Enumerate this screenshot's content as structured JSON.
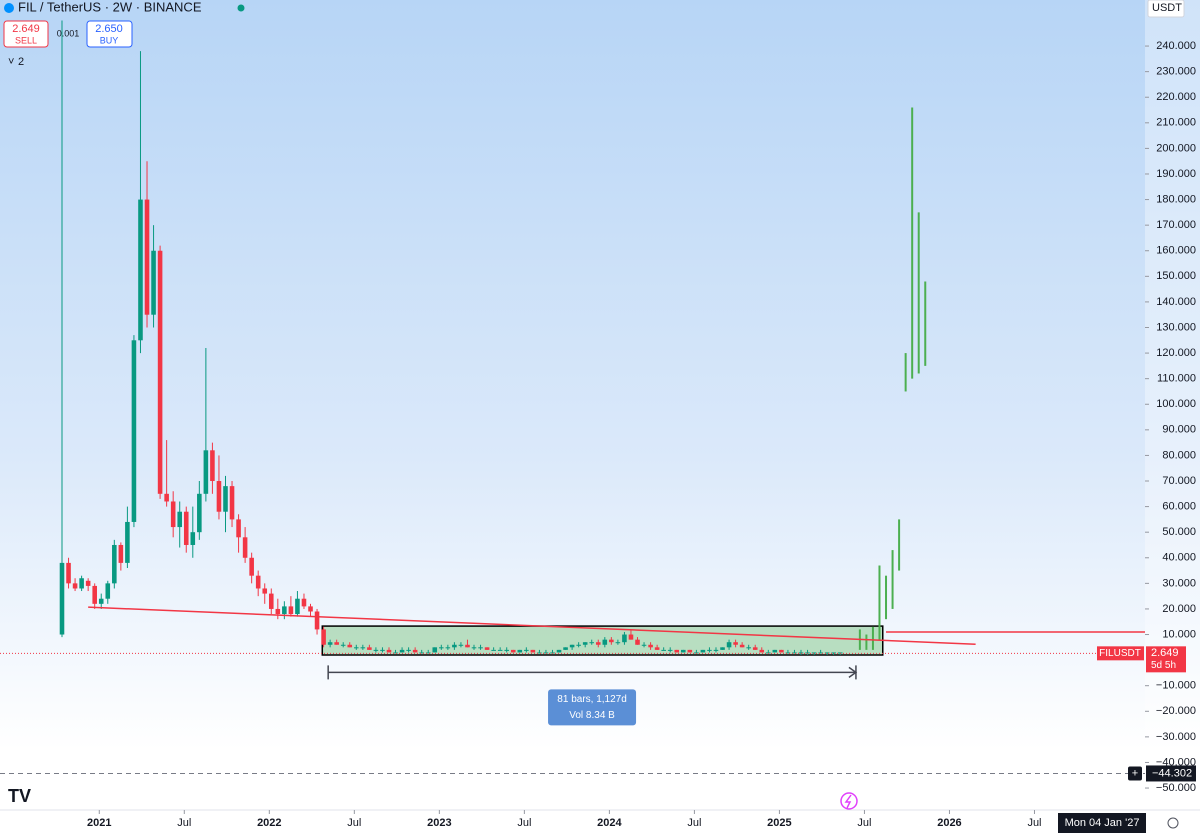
{
  "chart_data": {
    "type": "candlestick",
    "title": "FIL / TetherUS · 2W · BINANCE",
    "sell_price": "2.649",
    "sell_label": "SELL",
    "spread": "0.001",
    "buy_price": "2.650",
    "buy_label": "BUY",
    "indicator_count": "2",
    "currency": "USDT",
    "up_color": "#089981",
    "down_color": "#f23645",
    "xlim": [
      -9.48,
      165.6
    ],
    "ylim": [
      -57.8,
      258.0
    ],
    "xticks": [
      {
        "value": 5.7,
        "label": "2021"
      },
      {
        "value": 18.7,
        "label": "Jul"
      },
      {
        "value": 31.7,
        "label": "2022"
      },
      {
        "value": 44.7,
        "label": "Jul"
      },
      {
        "value": 57.7,
        "label": "2023"
      },
      {
        "value": 70.7,
        "label": "Jul"
      },
      {
        "value": 83.7,
        "label": "2024"
      },
      {
        "value": 96.7,
        "label": "Jul"
      },
      {
        "value": 109.7,
        "label": "2025"
      },
      {
        "value": 122.7,
        "label": "Jul"
      },
      {
        "value": 135.7,
        "label": "2026"
      },
      {
        "value": 148.7,
        "label": "Jul"
      }
    ],
    "yticks": [
      {
        "value": 240,
        "label": "240.000"
      },
      {
        "value": 230,
        "label": "230.000"
      },
      {
        "value": 220,
        "label": "220.000"
      },
      {
        "value": 210,
        "label": "210.000"
      },
      {
        "value": 200,
        "label": "200.000"
      },
      {
        "value": 190,
        "label": "190.000"
      },
      {
        "value": 180,
        "label": "180.000"
      },
      {
        "value": 170,
        "label": "170.000"
      },
      {
        "value": 160,
        "label": "160.000"
      },
      {
        "value": 150,
        "label": "150.000"
      },
      {
        "value": 140,
        "label": "140.000"
      },
      {
        "value": 130,
        "label": "130.000"
      },
      {
        "value": 120,
        "label": "120.000"
      },
      {
        "value": 110,
        "label": "110.000"
      },
      {
        "value": 100,
        "label": "100.000"
      },
      {
        "value": 90,
        "label": "90.000"
      },
      {
        "value": 80,
        "label": "80.000"
      },
      {
        "value": 70,
        "label": "70.000"
      },
      {
        "value": 60,
        "label": "60.000"
      },
      {
        "value": 50,
        "label": "50.000"
      },
      {
        "value": 40,
        "label": "40.000"
      },
      {
        "value": 30,
        "label": "30.000"
      },
      {
        "value": 20,
        "label": "20.000"
      },
      {
        "value": 10,
        "label": "10.000"
      },
      {
        "value": -10,
        "label": "−10.000"
      },
      {
        "value": -20,
        "label": "−20.000"
      },
      {
        "value": -30,
        "label": "−30.000"
      },
      {
        "value": -40,
        "label": "−40.000"
      },
      {
        "value": -50,
        "label": "−50.000"
      }
    ],
    "x": [
      0,
      1,
      2,
      3,
      4,
      5,
      6,
      7,
      8,
      9,
      10,
      11,
      12,
      13,
      14,
      15,
      16,
      17,
      18,
      19,
      20,
      21,
      22,
      23,
      24,
      25,
      26,
      27,
      28,
      29,
      30,
      31,
      32,
      33,
      34,
      35,
      36,
      37,
      38,
      39,
      40,
      41,
      42,
      43,
      44,
      45,
      46,
      47,
      48,
      49,
      50,
      51,
      52,
      53,
      54,
      55,
      56,
      57,
      58,
      59,
      60,
      61,
      62,
      63,
      64,
      65,
      66,
      67,
      68,
      69,
      70,
      71,
      72,
      73,
      74,
      75,
      76,
      77,
      78,
      79,
      80,
      81,
      82,
      83,
      84,
      85,
      86,
      87,
      88,
      89,
      90,
      91,
      92,
      93,
      94,
      95,
      96,
      97,
      98,
      99,
      100,
      101,
      102,
      103,
      104,
      105,
      106,
      107,
      108,
      109,
      110,
      111,
      112,
      113,
      114,
      115,
      116,
      117,
      118,
      119
    ],
    "ohlc": [
      [
        10,
        250,
        9,
        38
      ],
      [
        38,
        40,
        28,
        30
      ],
      [
        30,
        32,
        27,
        28
      ],
      [
        28,
        33,
        27,
        32
      ],
      [
        31,
        32,
        27,
        29
      ],
      [
        29,
        30,
        20,
        22
      ],
      [
        22,
        26,
        20,
        24
      ],
      [
        24,
        31,
        22,
        30
      ],
      [
        30,
        47,
        28,
        45
      ],
      [
        45,
        46,
        35,
        38
      ],
      [
        38,
        60,
        36,
        54
      ],
      [
        54,
        127,
        52,
        125
      ],
      [
        125,
        238,
        120,
        180
      ],
      [
        180,
        195,
        130,
        135
      ],
      [
        135,
        170,
        130,
        160
      ],
      [
        160,
        162,
        63,
        65
      ],
      [
        65,
        86,
        60,
        62
      ],
      [
        62,
        66,
        48,
        52
      ],
      [
        52,
        62,
        44,
        58
      ],
      [
        58,
        60,
        42,
        45
      ],
      [
        45,
        60,
        40,
        50
      ],
      [
        50,
        70,
        47,
        65
      ],
      [
        65,
        122,
        62,
        82
      ],
      [
        82,
        85,
        65,
        70
      ],
      [
        70,
        80,
        55,
        58
      ],
      [
        58,
        72,
        50,
        68
      ],
      [
        68,
        70,
        52,
        55
      ],
      [
        55,
        57,
        42,
        48
      ],
      [
        48,
        52,
        38,
        40
      ],
      [
        40,
        42,
        30,
        33
      ],
      [
        33,
        35,
        25,
        28
      ],
      [
        28,
        30,
        22,
        26
      ],
      [
        26,
        28,
        18,
        20
      ],
      [
        20,
        24,
        16,
        18
      ],
      [
        18,
        23,
        16,
        21
      ],
      [
        21,
        25,
        17,
        18
      ],
      [
        18,
        27,
        17,
        24
      ],
      [
        24,
        26,
        20,
        21
      ],
      [
        21,
        22,
        17,
        19
      ],
      [
        19,
        20,
        10,
        12
      ],
      [
        12,
        13,
        5,
        6
      ],
      [
        6,
        8,
        5,
        7
      ],
      [
        7,
        8,
        6,
        6
      ],
      [
        6,
        7,
        5,
        6
      ],
      [
        6,
        7,
        5,
        5
      ],
      [
        5,
        6,
        4,
        5
      ],
      [
        5,
        6,
        4,
        5
      ],
      [
        5,
        6,
        4,
        4
      ],
      [
        4,
        5,
        3,
        4
      ],
      [
        4,
        5,
        3,
        4
      ],
      [
        4,
        5,
        3,
        3
      ],
      [
        3,
        4,
        3,
        3
      ],
      [
        3,
        5,
        3,
        4
      ],
      [
        4,
        5,
        3,
        4
      ],
      [
        4,
        5,
        3,
        3
      ],
      [
        3,
        4,
        3,
        3
      ],
      [
        3,
        4,
        3,
        3
      ],
      [
        3,
        5,
        3,
        5
      ],
      [
        5,
        6,
        4,
        5
      ],
      [
        5,
        6,
        4,
        5
      ],
      [
        5,
        7,
        4,
        6
      ],
      [
        6,
        7,
        5,
        6
      ],
      [
        6,
        8,
        5,
        5
      ],
      [
        5,
        6,
        4,
        5
      ],
      [
        5,
        6,
        4,
        5
      ],
      [
        5,
        5,
        4,
        4
      ],
      [
        4,
        5,
        4,
        4
      ],
      [
        4,
        5,
        4,
        4
      ],
      [
        4,
        5,
        3,
        4
      ],
      [
        4,
        4,
        3,
        3
      ],
      [
        3,
        4,
        3,
        4
      ],
      [
        4,
        5,
        3,
        4
      ],
      [
        4,
        4,
        3,
        3
      ],
      [
        3,
        4,
        3,
        3
      ],
      [
        3,
        4,
        3,
        3
      ],
      [
        3,
        4,
        3,
        3
      ],
      [
        3,
        4,
        3,
        4
      ],
      [
        4,
        5,
        4,
        5
      ],
      [
        5,
        6,
        4,
        6
      ],
      [
        6,
        7,
        5,
        6
      ],
      [
        6,
        7,
        5,
        7
      ],
      [
        7,
        8,
        6,
        7
      ],
      [
        7,
        8,
        5,
        6
      ],
      [
        6,
        9,
        5,
        8
      ],
      [
        8,
        9,
        6,
        7
      ],
      [
        7,
        8,
        6,
        7
      ],
      [
        7,
        11,
        6,
        10
      ],
      [
        10,
        12,
        8,
        8
      ],
      [
        8,
        9,
        6,
        6
      ],
      [
        6,
        7,
        5,
        6
      ],
      [
        6,
        7,
        4,
        5
      ],
      [
        5,
        6,
        4,
        4
      ],
      [
        4,
        5,
        4,
        4
      ],
      [
        4,
        5,
        3,
        4
      ],
      [
        4,
        4,
        3,
        3
      ],
      [
        3,
        4,
        3,
        4
      ],
      [
        4,
        4,
        3,
        3
      ],
      [
        3,
        4,
        3,
        3
      ],
      [
        3,
        4,
        3,
        4
      ],
      [
        4,
        5,
        3,
        4
      ],
      [
        4,
        5,
        3,
        4
      ],
      [
        4,
        5,
        4,
        5
      ],
      [
        5,
        8,
        4,
        7
      ],
      [
        7,
        8,
        5,
        6
      ],
      [
        6,
        7,
        5,
        5
      ],
      [
        5,
        6,
        4,
        5
      ],
      [
        5,
        6,
        4,
        4
      ],
      [
        4,
        5,
        3,
        3
      ],
      [
        3,
        4,
        3,
        3
      ],
      [
        3,
        4,
        3,
        4
      ],
      [
        4,
        4,
        3,
        3
      ],
      [
        3,
        4,
        3,
        3
      ],
      [
        3,
        4,
        3,
        3
      ],
      [
        3,
        4,
        2,
        3
      ],
      [
        3,
        4,
        2,
        3
      ],
      [
        3,
        3,
        2,
        3
      ],
      [
        3,
        4,
        3,
        3
      ],
      [
        3,
        3,
        2,
        3
      ],
      [
        3,
        3,
        2,
        3
      ],
      [
        3,
        3,
        2,
        3
      ]
    ],
    "projection": {
      "color": "#4caf50",
      "x": [
        122,
        123,
        124,
        125,
        126,
        127,
        128,
        129,
        130,
        131,
        132
      ],
      "low": [
        4,
        4,
        4,
        8,
        16,
        20,
        35,
        105,
        110,
        112,
        115
      ],
      "high": [
        12,
        10,
        13,
        37,
        33,
        43,
        55,
        120,
        216,
        175,
        148
      ]
    },
    "trendline": {
      "color": "#f23645",
      "x": [
        4,
        139.7
      ],
      "y": [
        20.7,
        6.2
      ]
    },
    "hline": {
      "color": "#f23645",
      "x": 126,
      "y": 11
    },
    "box": {
      "x": [
        39.8,
        125.5
      ],
      "y": [
        2,
        13.3
      ]
    },
    "measure": {
      "x": [
        40.7,
        121.4
      ],
      "y": -4.8,
      "label": "81 bars, 1,127d",
      "volume": "Vol 8.34 B"
    },
    "last_price": {
      "value": 2.649,
      "symbol": "FILUSDT",
      "label": "2.649",
      "countdown": "5d 5h"
    },
    "crosshair": {
      "value": -44.302,
      "label": "−44.302",
      "date": "Mon 04 Jan '27"
    }
  }
}
